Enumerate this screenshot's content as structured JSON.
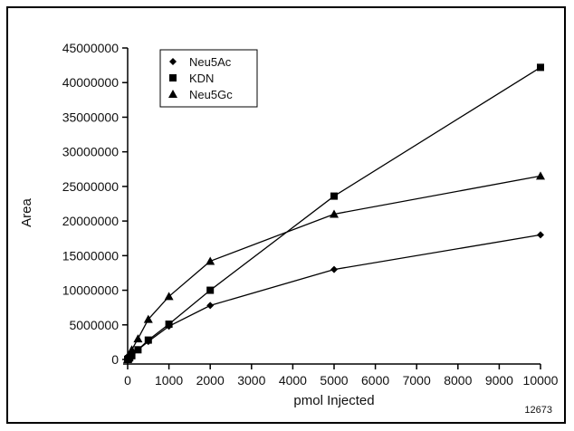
{
  "chart_data": {
    "type": "scatter",
    "xlabel": "pmol Injected",
    "ylabel": "Area",
    "xlim": [
      0,
      10000
    ],
    "ylim": [
      0,
      45000000
    ],
    "x_ticks": [
      "0",
      "1000",
      "2000",
      "3000",
      "4000",
      "5000",
      "6000",
      "7000",
      "8000",
      "9000",
      "10000"
    ],
    "y_ticks": [
      "0",
      "5000000",
      "10000000",
      "15000000",
      "20000000",
      "25000000",
      "30000000",
      "35000000",
      "40000000",
      "45000000"
    ],
    "grid": false,
    "legend_position": "top-left",
    "series": [
      {
        "name": "Neu5Ac",
        "marker": "diamond",
        "points": [
          [
            0,
            0
          ],
          [
            10,
            60000
          ],
          [
            25,
            150000
          ],
          [
            50,
            300000
          ],
          [
            100,
            600000
          ],
          [
            250,
            1400000
          ],
          [
            500,
            2600000
          ],
          [
            1000,
            4800000
          ],
          [
            2000,
            7800000
          ],
          [
            5000,
            13000000
          ],
          [
            10000,
            18000000
          ]
        ]
      },
      {
        "name": "KDN",
        "marker": "square",
        "points": [
          [
            0,
            0
          ],
          [
            10,
            50000
          ],
          [
            25,
            130000
          ],
          [
            50,
            280000
          ],
          [
            100,
            550000
          ],
          [
            250,
            1400000
          ],
          [
            500,
            2800000
          ],
          [
            1000,
            5100000
          ],
          [
            2000,
            10000000
          ],
          [
            5000,
            23600000
          ],
          [
            10000,
            42200000
          ]
        ]
      },
      {
        "name": "Neu5Gc",
        "marker": "triangle",
        "points": [
          [
            0,
            0
          ],
          [
            10,
            150000
          ],
          [
            25,
            350000
          ],
          [
            50,
            700000
          ],
          [
            100,
            1400000
          ],
          [
            250,
            3000000
          ],
          [
            500,
            5800000
          ],
          [
            1000,
            9100000
          ],
          [
            2000,
            14200000
          ],
          [
            5000,
            21000000
          ],
          [
            10000,
            26500000
          ]
        ]
      }
    ]
  },
  "figure_id": "12673"
}
